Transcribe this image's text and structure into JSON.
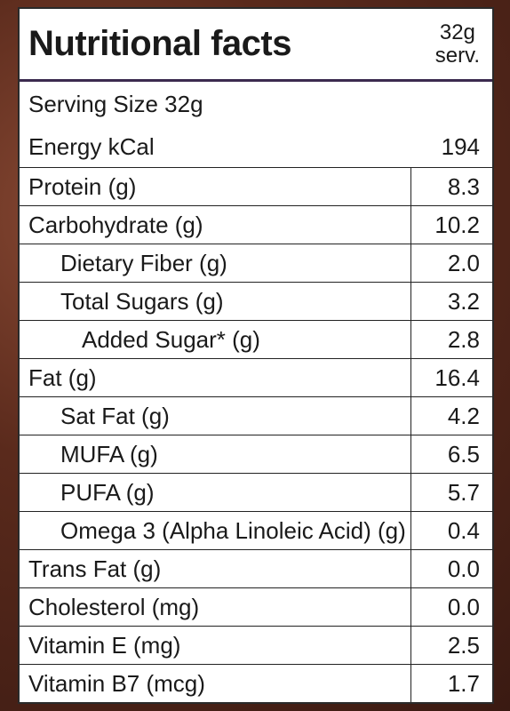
{
  "header": {
    "title": "Nutritional facts",
    "column_label_lines": [
      "32g",
      "serv."
    ]
  },
  "serving_size": "Serving Size 32g",
  "rows": [
    {
      "label": "Energy kCal",
      "value": "194"
    },
    {
      "label": "Protein (g)",
      "value": "8.3"
    },
    {
      "label": "Carbohydrate (g)",
      "value": "10.2",
      "children": [
        {
          "label": "Dietary Fiber (g)",
          "value": "2.0"
        },
        {
          "label": "Total Sugars (g)",
          "value": "3.2",
          "children": [
            {
              "label": "Added Sugar* (g)",
              "value": "2.8"
            }
          ]
        }
      ]
    },
    {
      "label": "Fat (g)",
      "value": "16.4",
      "children": [
        {
          "label": "Sat Fat (g)",
          "value": "4.2"
        },
        {
          "label": "MUFA (g)",
          "value": "6.5"
        },
        {
          "label": "PUFA (g)",
          "value": "5.7"
        },
        {
          "label": "Omega 3 (Alpha Linoleic Acid) (g)",
          "value": "0.4"
        }
      ]
    },
    {
      "label": "Trans Fat (g)",
      "value": "0.0"
    },
    {
      "label": "Cholesterol (mg)",
      "value": "0.0"
    },
    {
      "label": "Vitamin E (mg)",
      "value": "2.5"
    },
    {
      "label": "Vitamin B7 (mcg)",
      "value": "1.7"
    }
  ]
}
